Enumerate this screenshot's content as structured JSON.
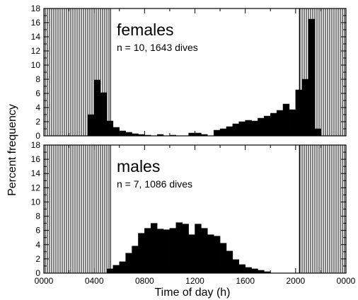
{
  "chart_data": {
    "type": "bar",
    "ylabel": "Percent frequency",
    "xlabel": "Time of day (h)",
    "x_range_hours": [
      0,
      24
    ],
    "bin_width_hours": 0.5,
    "x_ticks": [
      "0000",
      "0400",
      "0800",
      "1200",
      "1600",
      "2000",
      "0000"
    ],
    "y_ticks": [
      "0",
      "2",
      "4",
      "6",
      "8",
      "10",
      "12",
      "14",
      "16",
      "18"
    ],
    "ylim": [
      0,
      18
    ],
    "panels": [
      {
        "label": "females",
        "subtitle": "n = 10, 1643 dives",
        "night_intervals_hours": [
          [
            0,
            5.3
          ],
          [
            20.3,
            24
          ]
        ],
        "bin_starts_hours": [
          3.5,
          4.0,
          4.5,
          5.0,
          5.5,
          6.0,
          6.5,
          7.0,
          7.5,
          8.0,
          9.0,
          10.0,
          11.5,
          12.0,
          12.5,
          13.5,
          14.0,
          14.5,
          15.0,
          15.5,
          16.0,
          16.5,
          17.0,
          17.5,
          18.0,
          18.5,
          19.0,
          19.5,
          20.0,
          20.5,
          21.0,
          21.5
        ],
        "values": [
          3.0,
          7.9,
          6.1,
          2.1,
          1.2,
          0.7,
          0.5,
          0.3,
          0.2,
          0.1,
          0.2,
          0.1,
          0.4,
          0.4,
          0.2,
          0.8,
          1.0,
          1.3,
          1.7,
          2.0,
          2.2,
          2.1,
          2.5,
          2.8,
          3.2,
          3.6,
          4.5,
          3.7,
          6.5,
          8.0,
          16.5,
          1.0
        ]
      },
      {
        "label": "males",
        "subtitle": "n = 7, 1086 dives",
        "night_intervals_hours": [
          [
            0,
            5.3
          ],
          [
            20.3,
            24
          ]
        ],
        "bin_starts_hours": [
          5.0,
          5.5,
          6.0,
          6.5,
          7.0,
          7.5,
          8.0,
          8.5,
          9.0,
          9.5,
          10.0,
          10.5,
          11.0,
          11.5,
          12.0,
          12.5,
          13.0,
          13.5,
          14.0,
          14.5,
          15.0,
          15.5,
          16.0,
          16.5,
          17.0,
          17.5
        ],
        "values": [
          0.6,
          1.1,
          1.6,
          2.8,
          3.8,
          5.6,
          6.3,
          7.0,
          6.2,
          6.1,
          6.3,
          7.1,
          6.9,
          5.4,
          6.9,
          6.3,
          5.4,
          5.2,
          4.2,
          3.1,
          1.9,
          1.2,
          0.8,
          0.6,
          0.4,
          0.2
        ]
      }
    ]
  }
}
